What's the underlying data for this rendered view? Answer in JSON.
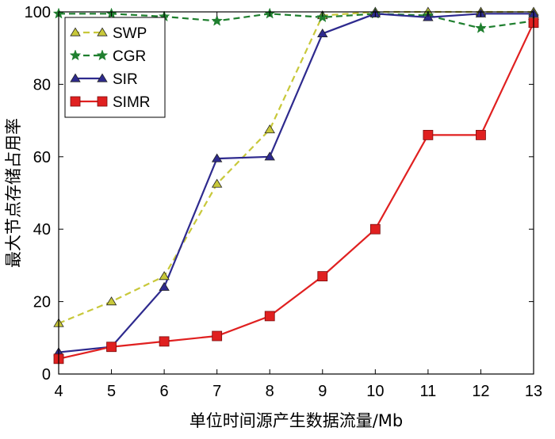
{
  "chart_data": {
    "type": "line",
    "title": "",
    "xlabel": "单位时间源产生数据流量/Mb",
    "ylabel": "最大节点存储占用率",
    "xlim": [
      4,
      13
    ],
    "ylim": [
      0,
      100
    ],
    "x_ticks": [
      "4",
      "5",
      "6",
      "7",
      "8",
      "9",
      "10",
      "11",
      "12",
      "13"
    ],
    "y_ticks": [
      "0",
      "20",
      "40",
      "60",
      "80",
      "100"
    ],
    "grid": false,
    "legend_position": "top-left",
    "series": [
      {
        "name": "SWP",
        "color": "#c8c83a",
        "marker": "triangle",
        "line_style": "dashed",
        "x": [
          4,
          5,
          6,
          7,
          8,
          9,
          10,
          11,
          12,
          13
        ],
        "y": [
          14,
          20,
          27,
          52.5,
          67.5,
          99,
          100,
          100,
          100,
          100
        ]
      },
      {
        "name": "CGR",
        "color": "#1f7f2f",
        "marker": "star",
        "line_style": "dashed",
        "x": [
          4,
          5,
          6,
          7,
          8,
          9,
          10,
          11,
          12,
          13
        ],
        "y": [
          99.5,
          99.5,
          98.7,
          97.5,
          99.5,
          98.5,
          99.5,
          99,
          95.5,
          97.5
        ]
      },
      {
        "name": "SIR",
        "color": "#2e2a8e",
        "marker": "triangle",
        "line_style": "solid",
        "x": [
          4,
          5,
          6,
          7,
          8,
          9,
          10,
          11,
          12,
          13
        ],
        "y": [
          6,
          7.5,
          24,
          59.5,
          60,
          94,
          99.5,
          98.5,
          99.5,
          99.5
        ]
      },
      {
        "name": "SIMR",
        "color": "#e02020",
        "marker": "square",
        "line_style": "solid",
        "x": [
          4,
          5,
          6,
          7,
          8,
          9,
          10,
          11,
          12,
          13
        ],
        "y": [
          4.2,
          7.5,
          9,
          10.5,
          16,
          27,
          40,
          66,
          66,
          97
        ]
      }
    ]
  }
}
